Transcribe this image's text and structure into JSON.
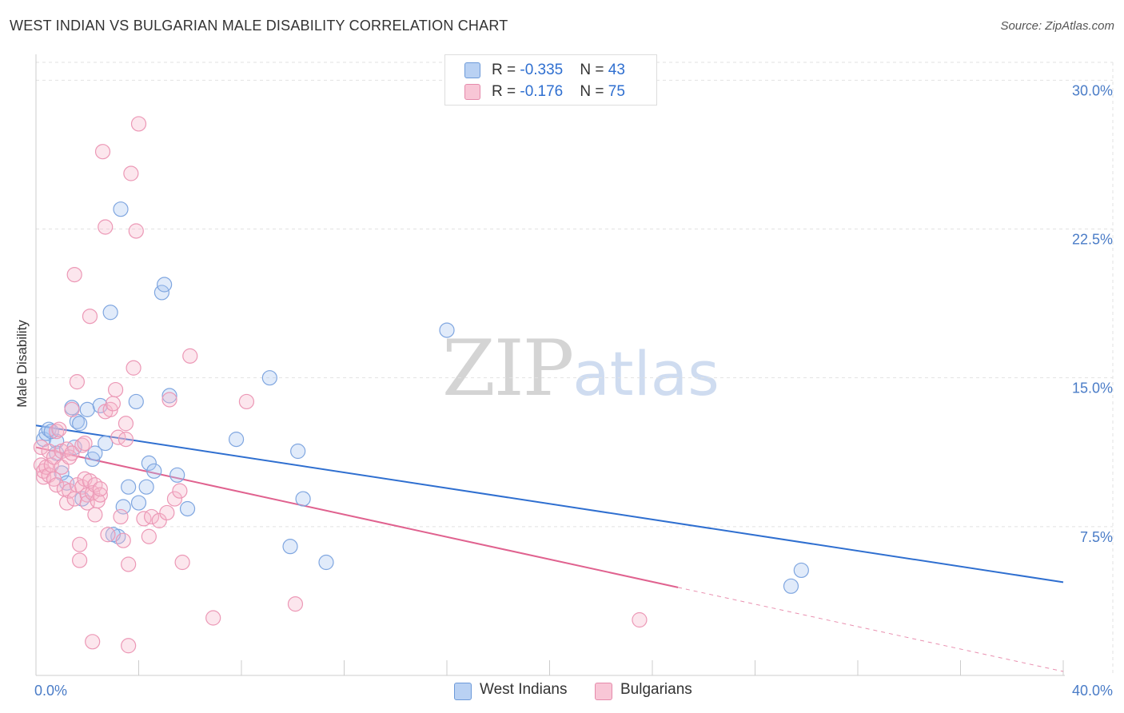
{
  "title": "WEST INDIAN VS BULGARIAN MALE DISABILITY CORRELATION CHART",
  "source": "Source: ZipAtlas.com",
  "watermark": {
    "zip": "ZIP",
    "atlas": "atlas"
  },
  "colors": {
    "west_indians": "#2f6fd0",
    "west_indians_fill": "#a9c6f0",
    "bulgarians": "#e0628f",
    "bulgarians_fill": "#f6b7cb",
    "grid": "#e2e2e2",
    "tick_text": "#4a7cc7"
  },
  "legend": {
    "rows": [
      {
        "r_label": "R = ",
        "r_value": "-0.335",
        "n_label": "N = ",
        "n_value": "43"
      },
      {
        "r_label": "R = ",
        "r_value": "-0.176",
        "n_label": "N = ",
        "n_value": "75"
      }
    ]
  },
  "chart_data": {
    "type": "scatter",
    "title": "WEST INDIAN VS BULGARIAN MALE DISABILITY CORRELATION CHART",
    "xlabel": "",
    "ylabel": "Male Disability",
    "xlim": [
      0,
      40
    ],
    "ylim": [
      0,
      30.9
    ],
    "x_ticks": [
      {
        "value": 0,
        "label": "0.0%"
      },
      {
        "value": 40,
        "label": "40.0%"
      }
    ],
    "y_ticks": [
      {
        "value": 7.5,
        "label": "7.5%"
      },
      {
        "value": 15.0,
        "label": "15.0%"
      },
      {
        "value": 22.5,
        "label": "22.5%"
      },
      {
        "value": 30.0,
        "label": "30.0%"
      }
    ],
    "x_minor_ticks": [
      4,
      8,
      12,
      16,
      20,
      24,
      28,
      32,
      36,
      40
    ],
    "grid": true,
    "legend_position": "top-center",
    "series": [
      {
        "name": "West Indians",
        "color": "#2f6fd0",
        "trend": {
          "x0": 0,
          "y0": 12.6,
          "x1": 40,
          "y1": 4.7,
          "dashed_from": null
        },
        "points": [
          [
            0.3,
            11.9
          ],
          [
            0.4,
            12.2
          ],
          [
            0.5,
            12.4
          ],
          [
            0.8,
            11.8
          ],
          [
            0.8,
            11.2
          ],
          [
            1.0,
            10.2
          ],
          [
            1.4,
            13.5
          ],
          [
            1.5,
            11.5
          ],
          [
            1.6,
            12.8
          ],
          [
            1.7,
            12.7
          ],
          [
            1.8,
            8.9
          ],
          [
            2.0,
            13.4
          ],
          [
            2.2,
            10.9
          ],
          [
            2.3,
            11.2
          ],
          [
            2.5,
            13.6
          ],
          [
            2.7,
            11.7
          ],
          [
            2.9,
            18.3
          ],
          [
            3.2,
            7.0
          ],
          [
            3.3,
            23.5
          ],
          [
            3.4,
            8.5
          ],
          [
            3.6,
            9.5
          ],
          [
            3.9,
            13.8
          ],
          [
            4.0,
            8.7
          ],
          [
            4.3,
            9.5
          ],
          [
            4.4,
            10.7
          ],
          [
            4.6,
            10.3
          ],
          [
            4.9,
            19.3
          ],
          [
            5.0,
            19.7
          ],
          [
            5.2,
            14.1
          ],
          [
            5.5,
            10.1
          ],
          [
            5.9,
            8.4
          ],
          [
            7.8,
            11.9
          ],
          [
            9.1,
            15.0
          ],
          [
            9.9,
            6.5
          ],
          [
            10.2,
            11.3
          ],
          [
            10.4,
            8.9
          ],
          [
            11.3,
            5.7
          ],
          [
            16.0,
            17.4
          ],
          [
            29.4,
            4.5
          ],
          [
            29.8,
            5.3
          ],
          [
            3.0,
            7.1
          ],
          [
            1.2,
            9.7
          ],
          [
            0.6,
            12.3
          ]
        ]
      },
      {
        "name": "Bulgarians",
        "color": "#e0628f",
        "trend": {
          "x0": 0,
          "y0": 11.5,
          "x1": 40,
          "y1": 0.2,
          "dashed_from": 25
        },
        "points": [
          [
            0.2,
            11.5
          ],
          [
            0.2,
            10.6
          ],
          [
            0.3,
            10.0
          ],
          [
            0.3,
            10.3
          ],
          [
            0.4,
            10.5
          ],
          [
            0.5,
            11.3
          ],
          [
            0.5,
            10.1
          ],
          [
            0.6,
            10.6
          ],
          [
            0.7,
            9.9
          ],
          [
            0.7,
            11.0
          ],
          [
            0.8,
            12.3
          ],
          [
            0.8,
            9.6
          ],
          [
            0.9,
            12.4
          ],
          [
            1.0,
            11.3
          ],
          [
            1.0,
            10.5
          ],
          [
            1.1,
            9.4
          ],
          [
            1.2,
            8.7
          ],
          [
            1.2,
            11.4
          ],
          [
            1.3,
            11.0
          ],
          [
            1.3,
            9.3
          ],
          [
            1.4,
            13.4
          ],
          [
            1.4,
            11.2
          ],
          [
            1.5,
            8.9
          ],
          [
            1.5,
            20.2
          ],
          [
            1.6,
            14.8
          ],
          [
            1.6,
            9.6
          ],
          [
            1.7,
            5.8
          ],
          [
            1.7,
            6.6
          ],
          [
            1.8,
            9.5
          ],
          [
            1.8,
            11.6
          ],
          [
            1.9,
            9.9
          ],
          [
            1.9,
            11.7
          ],
          [
            2.0,
            9.1
          ],
          [
            2.0,
            8.7
          ],
          [
            2.1,
            18.1
          ],
          [
            2.1,
            9.8
          ],
          [
            2.2,
            1.7
          ],
          [
            2.2,
            9.2
          ],
          [
            2.3,
            8.1
          ],
          [
            2.3,
            9.6
          ],
          [
            2.4,
            8.8
          ],
          [
            2.5,
            9.1
          ],
          [
            2.5,
            9.4
          ],
          [
            2.6,
            26.4
          ],
          [
            2.7,
            22.6
          ],
          [
            2.7,
            13.3
          ],
          [
            2.8,
            7.1
          ],
          [
            2.9,
            13.4
          ],
          [
            3.0,
            13.7
          ],
          [
            3.1,
            14.4
          ],
          [
            3.2,
            12.0
          ],
          [
            3.3,
            8.0
          ],
          [
            3.4,
            6.8
          ],
          [
            3.5,
            12.7
          ],
          [
            3.6,
            5.6
          ],
          [
            3.6,
            1.5
          ],
          [
            3.7,
            25.3
          ],
          [
            3.8,
            15.5
          ],
          [
            3.9,
            22.4
          ],
          [
            4.0,
            27.8
          ],
          [
            4.2,
            7.9
          ],
          [
            4.5,
            8.0
          ],
          [
            4.8,
            7.8
          ],
          [
            5.1,
            8.2
          ],
          [
            5.2,
            13.9
          ],
          [
            5.4,
            8.9
          ],
          [
            5.6,
            9.3
          ],
          [
            5.7,
            5.7
          ],
          [
            6.0,
            16.1
          ],
          [
            6.9,
            2.9
          ],
          [
            8.2,
            13.8
          ],
          [
            10.1,
            3.6
          ],
          [
            23.5,
            2.8
          ],
          [
            4.4,
            7.0
          ],
          [
            3.5,
            11.9
          ]
        ]
      }
    ]
  },
  "bottom_legend": [
    {
      "label": "West Indians"
    },
    {
      "label": "Bulgarians"
    }
  ]
}
